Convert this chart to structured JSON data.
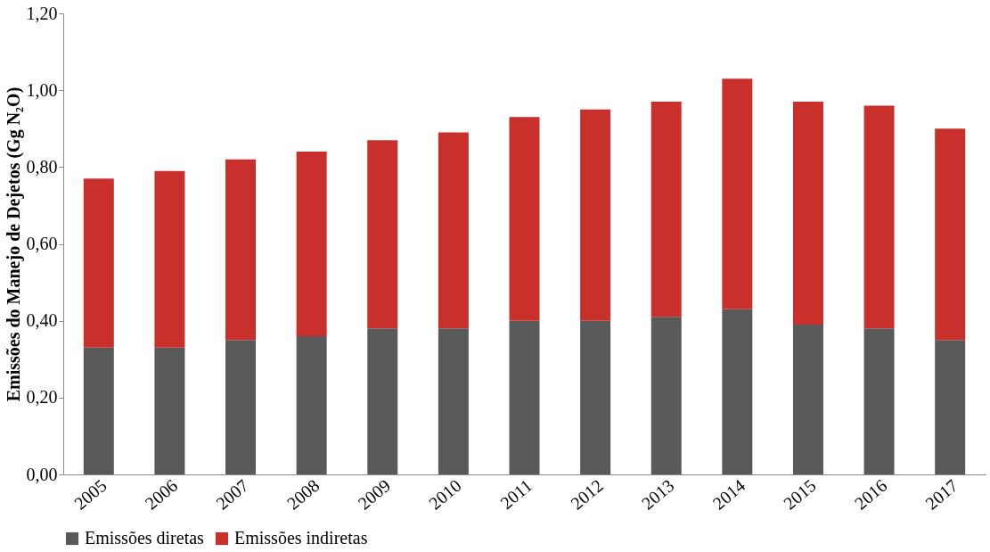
{
  "chart_data": {
    "type": "bar",
    "stacked": true,
    "ylabel": "Emissões do Manejo de Dejetos (Gg N₂O)",
    "categories": [
      "2005",
      "2006",
      "2007",
      "2008",
      "2009",
      "2010",
      "2011",
      "2012",
      "2013",
      "2014",
      "2015",
      "2016",
      "2017"
    ],
    "series": [
      {
        "name": "Emissões diretas",
        "color": "#595959",
        "values": [
          0.33,
          0.33,
          0.35,
          0.36,
          0.38,
          0.38,
          0.4,
          0.4,
          0.41,
          0.43,
          0.39,
          0.38,
          0.35
        ]
      },
      {
        "name": "Emissões indiretas",
        "color": "#c9302c",
        "values": [
          0.44,
          0.46,
          0.47,
          0.48,
          0.49,
          0.51,
          0.53,
          0.55,
          0.56,
          0.6,
          0.58,
          0.58,
          0.55
        ]
      }
    ],
    "ylim": [
      0,
      1.2
    ],
    "yticks": [
      {
        "value": 0,
        "label": "0,00"
      },
      {
        "value": 0.2,
        "label": "0,20"
      },
      {
        "value": 0.4,
        "label": "0,40"
      },
      {
        "value": 0.6,
        "label": "0,60"
      },
      {
        "value": 0.8,
        "label": "0,80"
      },
      {
        "value": 1.0,
        "label": "1,00"
      },
      {
        "value": 1.2,
        "label": "1,20"
      }
    ],
    "grid": false,
    "legend": "bottom"
  }
}
